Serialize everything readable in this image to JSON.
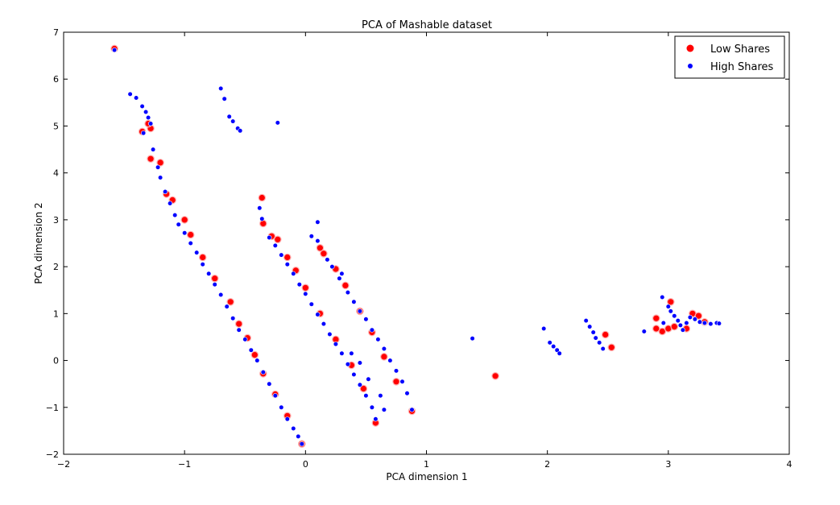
{
  "chart_data": {
    "type": "scatter",
    "title": "PCA of Mashable dataset",
    "xlabel": "PCA dimension 1",
    "ylabel": "PCA dimension 2",
    "xlim": [
      -2,
      4
    ],
    "ylim": [
      -2,
      7
    ],
    "xticks": [
      -2,
      -1,
      0,
      1,
      2,
      3,
      4
    ],
    "yticks": [
      -2,
      -1,
      0,
      1,
      2,
      3,
      4,
      5,
      6,
      7
    ],
    "grid": false,
    "legend_position": "top-right",
    "colors": {
      "low": "#ff0000",
      "high": "#0000ff",
      "low_edge": "#ffb3b3",
      "high_edge": "#ffffff"
    },
    "series": [
      {
        "name": "Low Shares",
        "color": "#ff0000",
        "points": [
          [
            -1.58,
            6.65
          ],
          [
            -1.28,
            4.95
          ],
          [
            -1.3,
            5.05
          ],
          [
            -1.35,
            4.88
          ],
          [
            -1.28,
            4.3
          ],
          [
            -1.2,
            4.22
          ],
          [
            -1.15,
            3.55
          ],
          [
            -1.1,
            3.42
          ],
          [
            -1.0,
            3.0
          ],
          [
            -0.95,
            2.68
          ],
          [
            -0.85,
            2.2
          ],
          [
            -0.75,
            1.75
          ],
          [
            -0.62,
            1.25
          ],
          [
            -0.55,
            0.78
          ],
          [
            -0.48,
            0.48
          ],
          [
            -0.42,
            0.12
          ],
          [
            -0.35,
            -0.28
          ],
          [
            -0.25,
            -0.72
          ],
          [
            -0.15,
            -1.18
          ],
          [
            -0.03,
            -1.78
          ],
          [
            -0.36,
            3.47
          ],
          [
            -0.35,
            2.92
          ],
          [
            -0.28,
            2.65
          ],
          [
            -0.23,
            2.58
          ],
          [
            -0.15,
            2.2
          ],
          [
            -0.08,
            1.92
          ],
          [
            0.0,
            1.55
          ],
          [
            0.12,
            1.0
          ],
          [
            0.25,
            0.45
          ],
          [
            0.38,
            -0.1
          ],
          [
            0.48,
            -0.6
          ],
          [
            0.58,
            -1.33
          ],
          [
            0.12,
            2.4
          ],
          [
            0.15,
            2.28
          ],
          [
            0.25,
            1.95
          ],
          [
            0.33,
            1.6
          ],
          [
            0.45,
            1.05
          ],
          [
            0.55,
            0.6
          ],
          [
            0.65,
            0.08
          ],
          [
            0.75,
            -0.45
          ],
          [
            0.88,
            -1.08
          ],
          [
            1.57,
            -0.33
          ],
          [
            2.48,
            0.55
          ],
          [
            2.53,
            0.28
          ],
          [
            2.9,
            0.9
          ],
          [
            2.9,
            0.68
          ],
          [
            2.95,
            0.62
          ],
          [
            3.0,
            0.68
          ],
          [
            3.05,
            0.72
          ],
          [
            3.02,
            1.25
          ],
          [
            3.15,
            0.68
          ],
          [
            3.2,
            1.0
          ],
          [
            3.25,
            0.95
          ],
          [
            3.3,
            0.82
          ]
        ]
      },
      {
        "name": "High Shares",
        "color": "#0000ff",
        "points": [
          [
            -1.58,
            6.62
          ],
          [
            -1.45,
            5.68
          ],
          [
            -1.4,
            5.6
          ],
          [
            -1.35,
            5.42
          ],
          [
            -1.32,
            5.3
          ],
          [
            -1.3,
            5.18
          ],
          [
            -1.28,
            5.05
          ],
          [
            -1.34,
            4.85
          ],
          [
            -1.26,
            4.5
          ],
          [
            -1.22,
            4.12
          ],
          [
            -1.2,
            3.9
          ],
          [
            -1.16,
            3.6
          ],
          [
            -1.12,
            3.35
          ],
          [
            -1.08,
            3.1
          ],
          [
            -1.05,
            2.9
          ],
          [
            -1.0,
            2.72
          ],
          [
            -0.95,
            2.5
          ],
          [
            -0.9,
            2.3
          ],
          [
            -0.85,
            2.05
          ],
          [
            -0.8,
            1.85
          ],
          [
            -0.75,
            1.62
          ],
          [
            -0.7,
            1.4
          ],
          [
            -0.65,
            1.15
          ],
          [
            -0.6,
            0.9
          ],
          [
            -0.55,
            0.65
          ],
          [
            -0.5,
            0.45
          ],
          [
            -0.45,
            0.22
          ],
          [
            -0.4,
            0.0
          ],
          [
            -0.35,
            -0.25
          ],
          [
            -0.3,
            -0.5
          ],
          [
            -0.25,
            -0.75
          ],
          [
            -0.2,
            -1.0
          ],
          [
            -0.15,
            -1.25
          ],
          [
            -0.1,
            -1.45
          ],
          [
            -0.06,
            -1.62
          ],
          [
            -0.03,
            -1.78
          ],
          [
            -0.7,
            5.8
          ],
          [
            -0.67,
            5.58
          ],
          [
            -0.63,
            5.2
          ],
          [
            -0.6,
            5.1
          ],
          [
            -0.56,
            4.95
          ],
          [
            -0.54,
            4.9
          ],
          [
            -0.23,
            5.07
          ],
          [
            -0.38,
            3.25
          ],
          [
            -0.36,
            3.02
          ],
          [
            -0.3,
            2.62
          ],
          [
            -0.25,
            2.45
          ],
          [
            -0.2,
            2.25
          ],
          [
            -0.15,
            2.05
          ],
          [
            -0.1,
            1.85
          ],
          [
            -0.05,
            1.62
          ],
          [
            0.0,
            1.42
          ],
          [
            0.05,
            1.2
          ],
          [
            0.1,
            0.98
          ],
          [
            0.15,
            0.78
          ],
          [
            0.2,
            0.56
          ],
          [
            0.25,
            0.35
          ],
          [
            0.3,
            0.15
          ],
          [
            0.35,
            -0.08
          ],
          [
            0.4,
            -0.3
          ],
          [
            0.45,
            -0.52
          ],
          [
            0.5,
            -0.75
          ],
          [
            0.55,
            -1.0
          ],
          [
            0.58,
            -1.25
          ],
          [
            0.38,
            0.15
          ],
          [
            0.45,
            -0.05
          ],
          [
            0.52,
            -0.4
          ],
          [
            0.65,
            -1.05
          ],
          [
            0.05,
            2.65
          ],
          [
            0.1,
            2.55
          ],
          [
            0.1,
            2.95
          ],
          [
            0.18,
            2.15
          ],
          [
            0.22,
            2.0
          ],
          [
            0.28,
            1.75
          ],
          [
            0.3,
            1.85
          ],
          [
            0.35,
            1.45
          ],
          [
            0.4,
            1.25
          ],
          [
            0.45,
            1.05
          ],
          [
            0.5,
            0.88
          ],
          [
            0.55,
            0.65
          ],
          [
            0.6,
            0.45
          ],
          [
            0.65,
            0.25
          ],
          [
            0.7,
            0.0
          ],
          [
            0.75,
            -0.22
          ],
          [
            0.8,
            -0.45
          ],
          [
            0.84,
            -0.7
          ],
          [
            0.88,
            -1.05
          ],
          [
            0.62,
            -0.75
          ],
          [
            1.38,
            0.47
          ],
          [
            1.97,
            0.68
          ],
          [
            2.02,
            0.38
          ],
          [
            2.05,
            0.3
          ],
          [
            2.08,
            0.22
          ],
          [
            2.1,
            0.15
          ],
          [
            2.32,
            0.85
          ],
          [
            2.35,
            0.72
          ],
          [
            2.38,
            0.6
          ],
          [
            2.4,
            0.48
          ],
          [
            2.43,
            0.38
          ],
          [
            2.46,
            0.25
          ],
          [
            2.8,
            0.62
          ],
          [
            2.95,
            1.35
          ],
          [
            2.96,
            0.8
          ],
          [
            3.0,
            1.15
          ],
          [
            3.02,
            1.05
          ],
          [
            3.05,
            0.95
          ],
          [
            3.08,
            0.85
          ],
          [
            3.1,
            0.75
          ],
          [
            3.12,
            0.65
          ],
          [
            3.15,
            0.8
          ],
          [
            3.18,
            0.92
          ],
          [
            3.22,
            0.88
          ],
          [
            3.26,
            0.82
          ],
          [
            3.3,
            0.8
          ],
          [
            3.35,
            0.78
          ],
          [
            3.4,
            0.8
          ],
          [
            3.42,
            0.79
          ]
        ]
      }
    ]
  }
}
